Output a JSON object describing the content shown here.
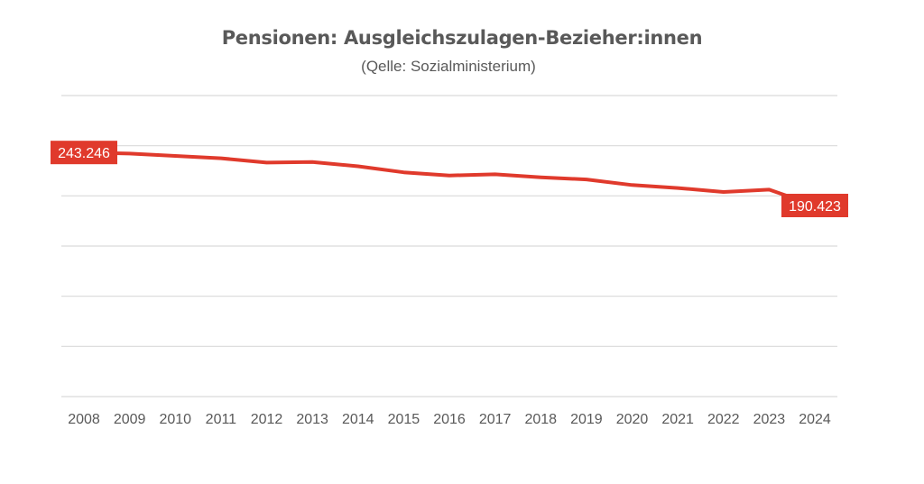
{
  "chart_data": {
    "type": "line",
    "title": "Pensionen: Ausgleichszulagen-Bezieher:innen",
    "subtitle": "(Qelle: Sozialministerium)",
    "x": [
      "2008",
      "2009",
      "2010",
      "2011",
      "2012",
      "2013",
      "2014",
      "2015",
      "2016",
      "2017",
      "2018",
      "2019",
      "2020",
      "2021",
      "2022",
      "2023",
      "2024"
    ],
    "series": [
      {
        "values": [
          243246,
          242200,
          239800,
          237500,
          233200,
          233800,
          229500,
          223500,
          220300,
          221500,
          218500,
          216400,
          210800,
          207800,
          203900,
          206200,
          190423
        ],
        "color": "#e03a2c"
      }
    ],
    "data_labels": [
      {
        "index": 0,
        "text": "243.246"
      },
      {
        "index": 16,
        "text": "190.423"
      }
    ],
    "ylim": [
      0,
      300000
    ],
    "y_gridlines": [
      0,
      50000,
      100000,
      150000,
      200000,
      250000,
      300000
    ],
    "y_tick_labels_shown": false,
    "grid": true,
    "legend": false
  }
}
